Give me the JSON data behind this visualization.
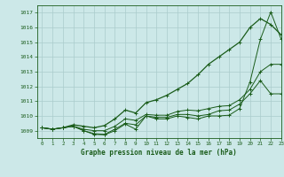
{
  "xlabel": "Graphe pression niveau de la mer (hPa)",
  "ylim": [
    1008.5,
    1017.5
  ],
  "xlim": [
    -0.5,
    23
  ],
  "yticks": [
    1009,
    1010,
    1011,
    1012,
    1013,
    1014,
    1015,
    1016,
    1017
  ],
  "xticks": [
    0,
    1,
    2,
    3,
    4,
    5,
    6,
    7,
    8,
    9,
    10,
    11,
    12,
    13,
    14,
    15,
    16,
    17,
    18,
    19,
    20,
    21,
    22,
    23
  ],
  "bg_color": "#cce8e8",
  "line_color": "#1a5c1a",
  "grid_color": "#aacccc",
  "series": [
    [
      1009.2,
      1009.1,
      1009.2,
      1009.3,
      1009.0,
      1008.75,
      1008.72,
      1009.0,
      1009.45,
      1009.1,
      1010.0,
      1009.8,
      1009.8,
      1010.0,
      1009.9,
      1009.8,
      1010.0,
      1010.0,
      1010.05,
      1010.5,
      1012.3,
      1015.2,
      1017.05,
      1015.2
    ],
    [
      1009.2,
      1009.1,
      1009.2,
      1009.3,
      1009.0,
      1008.8,
      1008.75,
      1009.1,
      1009.5,
      1009.4,
      1010.0,
      1009.9,
      1009.9,
      1010.1,
      1010.1,
      1010.0,
      1010.1,
      1010.35,
      1010.4,
      1010.8,
      1011.5,
      1012.4,
      1011.5,
      1011.5
    ],
    [
      1009.2,
      1009.1,
      1009.2,
      1009.3,
      1009.1,
      1009.0,
      1009.0,
      1009.3,
      1009.8,
      1009.7,
      1010.1,
      1010.05,
      1010.05,
      1010.3,
      1010.4,
      1010.35,
      1010.5,
      1010.65,
      1010.7,
      1011.1,
      1011.8,
      1013.0,
      1013.5,
      1013.5
    ],
    [
      1009.2,
      1009.1,
      1009.2,
      1009.4,
      1009.3,
      1009.2,
      1009.35,
      1009.8,
      1010.4,
      1010.2,
      1010.9,
      1011.1,
      1011.4,
      1011.8,
      1012.2,
      1012.8,
      1013.5,
      1014.0,
      1014.5,
      1015.0,
      1016.0,
      1016.6,
      1016.2,
      1015.5
    ]
  ]
}
